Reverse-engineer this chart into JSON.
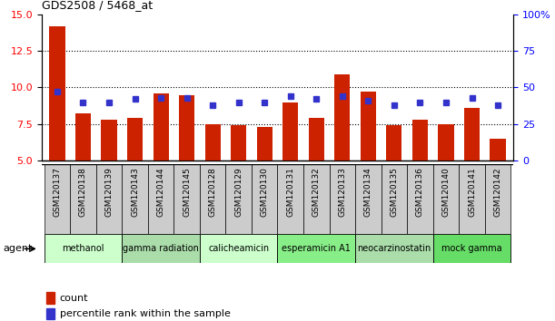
{
  "title": "GDS2508 / 5468_at",
  "samples": [
    "GSM120137",
    "GSM120138",
    "GSM120139",
    "GSM120143",
    "GSM120144",
    "GSM120145",
    "GSM120128",
    "GSM120129",
    "GSM120130",
    "GSM120131",
    "GSM120132",
    "GSM120133",
    "GSM120134",
    "GSM120135",
    "GSM120136",
    "GSM120140",
    "GSM120141",
    "GSM120142"
  ],
  "count_values": [
    14.2,
    8.2,
    7.8,
    7.9,
    9.6,
    9.5,
    7.5,
    7.4,
    7.3,
    9.0,
    7.9,
    10.9,
    9.7,
    7.4,
    7.8,
    7.5,
    8.6,
    6.5
  ],
  "percentile_values": [
    47,
    40,
    40,
    42,
    43,
    43,
    38,
    40,
    40,
    44,
    42,
    44,
    41,
    38,
    40,
    40,
    43,
    38
  ],
  "ylim_left": [
    5,
    15
  ],
  "ylim_right": [
    0,
    100
  ],
  "yticks_left": [
    5,
    7.5,
    10,
    12.5,
    15
  ],
  "yticks_right": [
    0,
    25,
    50,
    75,
    100
  ],
  "bar_color": "#cc2200",
  "dot_color": "#3333cc",
  "groups": [
    {
      "label": "methanol",
      "start": 0,
      "end": 3,
      "color": "#ccffcc"
    },
    {
      "label": "gamma radiation",
      "start": 3,
      "end": 6,
      "color": "#aaddaa"
    },
    {
      "label": "calicheamicin",
      "start": 6,
      "end": 9,
      "color": "#ccffcc"
    },
    {
      "label": "esperamicin A1",
      "start": 9,
      "end": 12,
      "color": "#88ee88"
    },
    {
      "label": "neocarzinostatin",
      "start": 12,
      "end": 15,
      "color": "#aaddaa"
    },
    {
      "label": "mock gamma",
      "start": 15,
      "end": 18,
      "color": "#66dd66"
    }
  ],
  "legend_count_label": "count",
  "legend_percentile_label": "percentile rank within the sample",
  "agent_label": "agent",
  "grid_lines": [
    7.5,
    10.0,
    12.5
  ],
  "xtick_bg": "#cccccc"
}
